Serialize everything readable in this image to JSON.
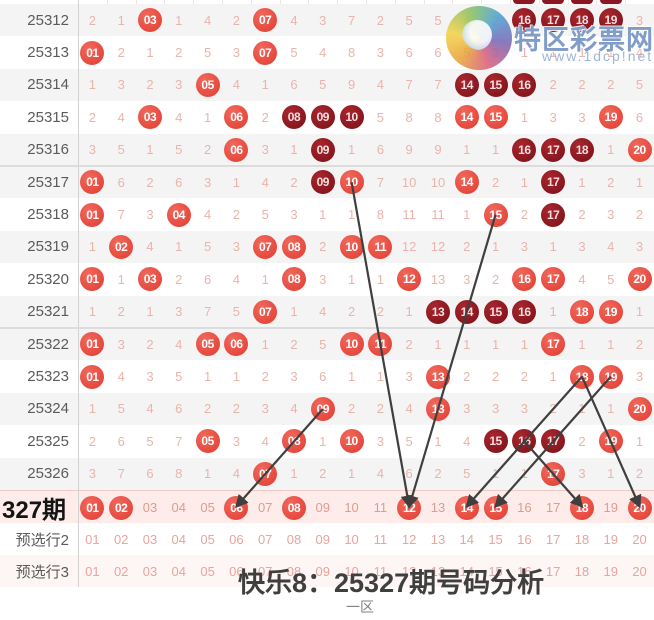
{
  "watermark": {
    "site_name": "特区彩票网",
    "site_url": "www.1dcp!net"
  },
  "footer": {
    "title": "快乐8：25327期号码分析",
    "zone": "一区"
  },
  "next_period": {
    "label": "327期"
  },
  "colors": {
    "ball_light": "#e84a3f",
    "ball_dark": "#8a1722",
    "miss_text": "#e9b4ae",
    "pick_row_bg": "#fdecea",
    "line": "#3f3f3f",
    "watermark_blue": "#5c82ba"
  },
  "chart_data": {
    "type": "table",
    "description": "Kuaile-8 lottery zone-1 (numbers 01-20) trend chart; cells are miss counts, L:=drawn ball light red, D:=drawn ball dark red",
    "columns": 20,
    "periods": [
      {
        "label": "25312",
        "cells": [
          "2",
          "1",
          "L:03",
          "1",
          "4",
          "2",
          "L:07",
          "4",
          "3",
          "7",
          "2",
          "5",
          "5",
          "4",
          "2",
          "D:16",
          "D:17",
          "D:18",
          "D:19",
          "3"
        ]
      },
      {
        "label": "25313",
        "cells": [
          "L:01",
          "2",
          "1",
          "2",
          "5",
          "3",
          "L:07",
          "5",
          "4",
          "8",
          "3",
          "6",
          "6",
          "5",
          "3",
          "1",
          "1",
          "1",
          "1",
          "4"
        ]
      },
      {
        "label": "25314",
        "cells": [
          "1",
          "3",
          "2",
          "3",
          "L:05",
          "4",
          "1",
          "6",
          "5",
          "9",
          "4",
          "7",
          "7",
          "D:14",
          "D:15",
          "D:16",
          "2",
          "2",
          "2",
          "5"
        ]
      },
      {
        "label": "25315",
        "cells": [
          "2",
          "4",
          "L:03",
          "4",
          "1",
          "L:06",
          "2",
          "D:08",
          "D:09",
          "D:10",
          "5",
          "8",
          "8",
          "L:14",
          "L:15",
          "1",
          "3",
          "3",
          "L:19",
          "6"
        ]
      },
      {
        "label": "25316",
        "cells": [
          "3",
          "5",
          "1",
          "5",
          "2",
          "L:06",
          "3",
          "1",
          "D:09",
          "1",
          "6",
          "9",
          "9",
          "1",
          "1",
          "D:16",
          "D:17",
          "D:18",
          "1",
          "L:20"
        ]
      },
      {
        "label": "25317",
        "cells": [
          "L:01",
          "6",
          "2",
          "6",
          "3",
          "1",
          "4",
          "2",
          "D:09",
          "L:10",
          "7",
          "10",
          "10",
          "L:14",
          "2",
          "1",
          "D:17",
          "1",
          "2",
          "1"
        ]
      },
      {
        "label": "25318",
        "cells": [
          "L:01",
          "7",
          "3",
          "L:04",
          "4",
          "2",
          "5",
          "3",
          "1",
          "1",
          "8",
          "11",
          "11",
          "1",
          "L:15",
          "2",
          "D:17",
          "2",
          "3",
          "2"
        ]
      },
      {
        "label": "25319",
        "cells": [
          "1",
          "L:02",
          "4",
          "1",
          "5",
          "3",
          "L:07",
          "L:08",
          "2",
          "L:10",
          "L:11",
          "12",
          "12",
          "2",
          "1",
          "3",
          "1",
          "3",
          "4",
          "3"
        ]
      },
      {
        "label": "25320",
        "cells": [
          "L:01",
          "1",
          "L:03",
          "2",
          "6",
          "4",
          "1",
          "L:08",
          "3",
          "1",
          "1",
          "L:12",
          "13",
          "3",
          "2",
          "L:16",
          "L:17",
          "4",
          "5",
          "L:20"
        ]
      },
      {
        "label": "25321",
        "cells": [
          "1",
          "2",
          "1",
          "3",
          "7",
          "5",
          "L:07",
          "1",
          "4",
          "2",
          "2",
          "1",
          "D:13",
          "D:14",
          "D:15",
          "D:16",
          "1",
          "L:18",
          "L:19",
          "1"
        ]
      },
      {
        "label": "25322",
        "cells": [
          "L:01",
          "3",
          "2",
          "4",
          "L:05",
          "L:06",
          "1",
          "2",
          "5",
          "L:10",
          "L:11",
          "2",
          "1",
          "1",
          "1",
          "1",
          "L:17",
          "1",
          "1",
          "2"
        ]
      },
      {
        "label": "25323",
        "cells": [
          "L:01",
          "4",
          "3",
          "5",
          "1",
          "1",
          "2",
          "3",
          "6",
          "1",
          "1",
          "3",
          "L:13",
          "2",
          "2",
          "2",
          "1",
          "L:18",
          "L:19",
          "3"
        ]
      },
      {
        "label": "25324",
        "cells": [
          "1",
          "5",
          "4",
          "6",
          "2",
          "2",
          "3",
          "4",
          "L:09",
          "2",
          "2",
          "4",
          "L:13",
          "3",
          "3",
          "3",
          "2",
          "1",
          "1",
          "L:20"
        ]
      },
      {
        "label": "25325",
        "cells": [
          "2",
          "6",
          "5",
          "7",
          "L:05",
          "3",
          "4",
          "L:08",
          "1",
          "L:10",
          "3",
          "5",
          "1",
          "4",
          "D:15",
          "D:16",
          "D:17",
          "2",
          "L:19",
          "1"
        ]
      },
      {
        "label": "25326",
        "cells": [
          "3",
          "7",
          "6",
          "8",
          "1",
          "4",
          "L:07",
          "1",
          "2",
          "1",
          "4",
          "6",
          "2",
          "5",
          "1",
          "1",
          "L:17",
          "3",
          "1",
          "2"
        ]
      }
    ],
    "pick_row": {
      "label": "327期",
      "numbers": [
        "01",
        "02",
        "03",
        "04",
        "05",
        "06",
        "07",
        "08",
        "09",
        "10",
        "11",
        "12",
        "13",
        "14",
        "15",
        "16",
        "17",
        "18",
        "19",
        "20"
      ],
      "circled": [
        1,
        2,
        6,
        8,
        12,
        14,
        15,
        18,
        20
      ]
    },
    "preselect_rows": [
      {
        "label": "预选行2",
        "numbers": [
          "01",
          "02",
          "03",
          "04",
          "05",
          "06",
          "07",
          "08",
          "09",
          "10",
          "11",
          "12",
          "13",
          "14",
          "15",
          "16",
          "17",
          "18",
          "19",
          "20"
        ]
      },
      {
        "label": "预选行3",
        "numbers": [
          "01",
          "02",
          "03",
          "04",
          "05",
          "06",
          "07",
          "08",
          "09",
          "10",
          "11",
          "12",
          "13",
          "14",
          "15",
          "16",
          "17",
          "18",
          "19",
          "20"
        ]
      }
    ],
    "trend_lines": [
      {
        "from": {
          "period": "25317",
          "num": 10
        },
        "to": {
          "period": "327期",
          "num": 12
        },
        "arrow": true
      },
      {
        "from": {
          "period": "25318",
          "num": 15
        },
        "to": {
          "period": "327期",
          "num": 12
        },
        "arrow": true
      },
      {
        "from": {
          "period": "25324",
          "num": 9
        },
        "to": {
          "period": "327期",
          "num": 6
        },
        "arrow": true
      },
      {
        "from": {
          "period": "25323",
          "num": 18
        },
        "to": {
          "period": "25325",
          "num": 16
        },
        "arrow": false
      },
      {
        "from": {
          "period": "25325",
          "num": 16
        },
        "to": {
          "period": "327期",
          "num": 14
        },
        "arrow": true
      },
      {
        "from": {
          "period": "25323",
          "num": 19
        },
        "to": {
          "period": "25325",
          "num": 17
        },
        "arrow": false
      },
      {
        "from": {
          "period": "25325",
          "num": 17
        },
        "to": {
          "period": "327期",
          "num": 15
        },
        "arrow": true
      },
      {
        "from": {
          "period": "25323",
          "num": 18
        },
        "to": {
          "period": "25325",
          "num": 19
        },
        "arrow": false
      },
      {
        "from": {
          "period": "25325",
          "num": 19
        },
        "to": {
          "period": "327期",
          "num": 20
        },
        "arrow": true
      },
      {
        "from": {
          "period": "25325",
          "num": 16
        },
        "to": {
          "period": "327期",
          "num": 18
        },
        "arrow": true
      }
    ],
    "top_sliver_cols": [
      16,
      17,
      18,
      19
    ]
  }
}
